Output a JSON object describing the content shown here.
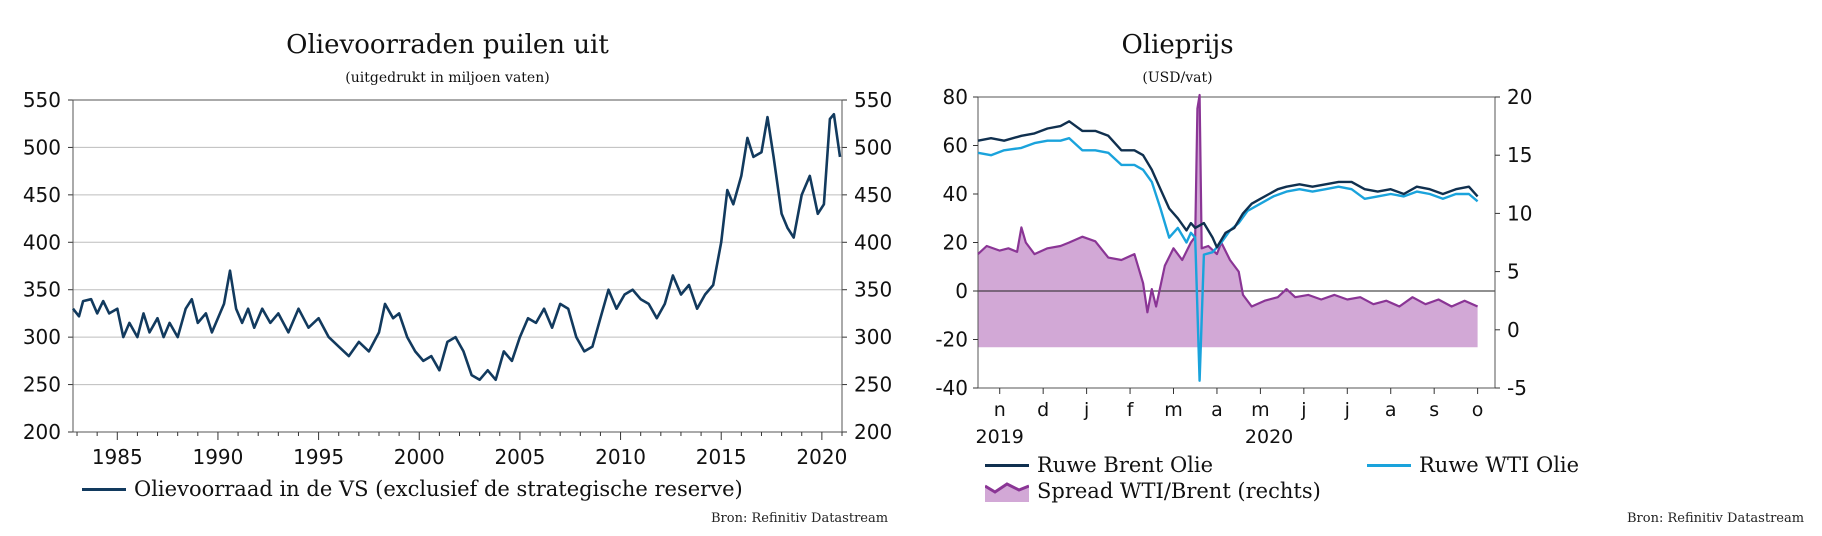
{
  "chart_data": [
    {
      "type": "line",
      "title": "Olievoorraden puilen uit",
      "subtitle": "(uitgedrukt in miljoen vaten)",
      "ylim": [
        200,
        550
      ],
      "yticks": [
        200,
        250,
        300,
        350,
        400,
        450,
        500,
        550
      ],
      "xlim": [
        1982.8,
        2021.0
      ],
      "xticks": [
        1985,
        1990,
        1995,
        2000,
        2005,
        2010,
        2015,
        2020
      ],
      "grid": true,
      "legend_position": "bottom",
      "series": [
        {
          "name": "Olievoorraad in de VS (exclusief de strategische reserve)",
          "color": "#123a5e",
          "points": [
            [
              1982.8,
              330
            ],
            [
              1983.1,
              322
            ],
            [
              1983.3,
              338
            ],
            [
              1983.7,
              340
            ],
            [
              1984.0,
              325
            ],
            [
              1984.3,
              338
            ],
            [
              1984.6,
              325
            ],
            [
              1985.0,
              330
            ],
            [
              1985.3,
              300
            ],
            [
              1985.6,
              315
            ],
            [
              1986.0,
              300
            ],
            [
              1986.3,
              325
            ],
            [
              1986.6,
              305
            ],
            [
              1987.0,
              320
            ],
            [
              1987.3,
              300
            ],
            [
              1987.6,
              315
            ],
            [
              1988.0,
              300
            ],
            [
              1988.4,
              330
            ],
            [
              1988.7,
              340
            ],
            [
              1989.0,
              315
            ],
            [
              1989.4,
              325
            ],
            [
              1989.7,
              305
            ],
            [
              1990.0,
              320
            ],
            [
              1990.3,
              335
            ],
            [
              1990.6,
              370
            ],
            [
              1990.9,
              330
            ],
            [
              1991.2,
              315
            ],
            [
              1991.5,
              330
            ],
            [
              1991.8,
              310
            ],
            [
              1992.2,
              330
            ],
            [
              1992.6,
              315
            ],
            [
              1993.0,
              325
            ],
            [
              1993.5,
              305
            ],
            [
              1994.0,
              330
            ],
            [
              1994.5,
              310
            ],
            [
              1995.0,
              320
            ],
            [
              1995.5,
              300
            ],
            [
              1996.0,
              290
            ],
            [
              1996.5,
              280
            ],
            [
              1997.0,
              295
            ],
            [
              1997.5,
              285
            ],
            [
              1998.0,
              305
            ],
            [
              1998.3,
              335
            ],
            [
              1998.7,
              320
            ],
            [
              1999.0,
              325
            ],
            [
              1999.4,
              300
            ],
            [
              1999.8,
              285
            ],
            [
              2000.2,
              275
            ],
            [
              2000.6,
              280
            ],
            [
              2001.0,
              265
            ],
            [
              2001.4,
              295
            ],
            [
              2001.8,
              300
            ],
            [
              2002.2,
              285
            ],
            [
              2002.6,
              260
            ],
            [
              2003.0,
              255
            ],
            [
              2003.4,
              265
            ],
            [
              2003.8,
              255
            ],
            [
              2004.2,
              285
            ],
            [
              2004.6,
              275
            ],
            [
              2005.0,
              300
            ],
            [
              2005.4,
              320
            ],
            [
              2005.8,
              315
            ],
            [
              2006.2,
              330
            ],
            [
              2006.6,
              310
            ],
            [
              2007.0,
              335
            ],
            [
              2007.4,
              330
            ],
            [
              2007.8,
              300
            ],
            [
              2008.2,
              285
            ],
            [
              2008.6,
              290
            ],
            [
              2009.0,
              320
            ],
            [
              2009.4,
              350
            ],
            [
              2009.8,
              330
            ],
            [
              2010.2,
              345
            ],
            [
              2010.6,
              350
            ],
            [
              2011.0,
              340
            ],
            [
              2011.4,
              335
            ],
            [
              2011.8,
              320
            ],
            [
              2012.2,
              335
            ],
            [
              2012.6,
              365
            ],
            [
              2013.0,
              345
            ],
            [
              2013.4,
              355
            ],
            [
              2013.8,
              330
            ],
            [
              2014.2,
              345
            ],
            [
              2014.6,
              355
            ],
            [
              2015.0,
              400
            ],
            [
              2015.3,
              455
            ],
            [
              2015.6,
              440
            ],
            [
              2016.0,
              470
            ],
            [
              2016.3,
              510
            ],
            [
              2016.6,
              490
            ],
            [
              2017.0,
              495
            ],
            [
              2017.3,
              532
            ],
            [
              2017.6,
              490
            ],
            [
              2018.0,
              430
            ],
            [
              2018.3,
              415
            ],
            [
              2018.6,
              405
            ],
            [
              2019.0,
              450
            ],
            [
              2019.4,
              470
            ],
            [
              2019.8,
              430
            ],
            [
              2020.1,
              440
            ],
            [
              2020.4,
              530
            ],
            [
              2020.6,
              535
            ],
            [
              2020.9,
              490
            ]
          ]
        }
      ]
    },
    {
      "type": "line",
      "title": "Olieprijs",
      "subtitle": "(USD/vat)",
      "ylim": [
        -40,
        80
      ],
      "yticks": [
        -40,
        -20,
        0,
        20,
        40,
        60,
        80
      ],
      "y2lim": [
        -5,
        20
      ],
      "y2ticks": [
        -5,
        0,
        5,
        10,
        15,
        20
      ],
      "month_labels": [
        "n",
        "d",
        "j",
        "f",
        "m",
        "a",
        "m",
        "j",
        "j",
        "a",
        "s",
        "o"
      ],
      "year_labels": [
        "2019",
        "2020"
      ],
      "grid": false,
      "legend_position": "bottom",
      "series": [
        {
          "name": "Ruwe Brent Olie",
          "color": "#10304f",
          "axis": "left",
          "points": [
            [
              0.0,
              62
            ],
            [
              0.3,
              63
            ],
            [
              0.6,
              62
            ],
            [
              1.0,
              64
            ],
            [
              1.3,
              65
            ],
            [
              1.6,
              67
            ],
            [
              1.9,
              68
            ],
            [
              2.1,
              70
            ],
            [
              2.4,
              66
            ],
            [
              2.7,
              66
            ],
            [
              3.0,
              64
            ],
            [
              3.3,
              58
            ],
            [
              3.6,
              58
            ],
            [
              3.8,
              56
            ],
            [
              4.0,
              50
            ],
            [
              4.2,
              42
            ],
            [
              4.4,
              34
            ],
            [
              4.6,
              30
            ],
            [
              4.8,
              25
            ],
            [
              4.9,
              28
            ],
            [
              5.0,
              26
            ],
            [
              5.2,
              28
            ],
            [
              5.4,
              22
            ],
            [
              5.5,
              18
            ],
            [
              5.7,
              24
            ],
            [
              5.9,
              26
            ],
            [
              6.1,
              32
            ],
            [
              6.3,
              36
            ],
            [
              6.5,
              38
            ],
            [
              6.7,
              40
            ],
            [
              6.9,
              42
            ],
            [
              7.1,
              43
            ],
            [
              7.4,
              44
            ],
            [
              7.7,
              43
            ],
            [
              8.0,
              44
            ],
            [
              8.3,
              45
            ],
            [
              8.6,
              45
            ],
            [
              8.9,
              42
            ],
            [
              9.2,
              41
            ],
            [
              9.5,
              42
            ],
            [
              9.8,
              40
            ],
            [
              10.1,
              43
            ],
            [
              10.4,
              42
            ],
            [
              10.7,
              40
            ],
            [
              11.0,
              42
            ],
            [
              11.3,
              43
            ],
            [
              11.5,
              39
            ]
          ]
        },
        {
          "name": "Ruwe WTI Olie",
          "color": "#1aa3dc",
          "axis": "left",
          "points": [
            [
              0.0,
              57
            ],
            [
              0.3,
              56
            ],
            [
              0.6,
              58
            ],
            [
              1.0,
              59
            ],
            [
              1.3,
              61
            ],
            [
              1.6,
              62
            ],
            [
              1.9,
              62
            ],
            [
              2.1,
              63
            ],
            [
              2.4,
              58
            ],
            [
              2.7,
              58
            ],
            [
              3.0,
              57
            ],
            [
              3.3,
              52
            ],
            [
              3.6,
              52
            ],
            [
              3.8,
              50
            ],
            [
              4.0,
              45
            ],
            [
              4.2,
              34
            ],
            [
              4.4,
              22
            ],
            [
              4.6,
              26
            ],
            [
              4.8,
              20
            ],
            [
              4.9,
              24
            ],
            [
              5.0,
              22
            ],
            [
              5.1,
              -37
            ],
            [
              5.2,
              15
            ],
            [
              5.4,
              16
            ],
            [
              5.6,
              20
            ],
            [
              5.8,
              25
            ],
            [
              6.0,
              28
            ],
            [
              6.2,
              33
            ],
            [
              6.5,
              36
            ],
            [
              6.8,
              39
            ],
            [
              7.1,
              41
            ],
            [
              7.4,
              42
            ],
            [
              7.7,
              41
            ],
            [
              8.0,
              42
            ],
            [
              8.3,
              43
            ],
            [
              8.6,
              42
            ],
            [
              8.9,
              38
            ],
            [
              9.2,
              39
            ],
            [
              9.5,
              40
            ],
            [
              9.8,
              39
            ],
            [
              10.1,
              41
            ],
            [
              10.4,
              40
            ],
            [
              10.7,
              38
            ],
            [
              11.0,
              40
            ],
            [
              11.3,
              40
            ],
            [
              11.5,
              37
            ]
          ]
        },
        {
          "name": "Spread WTI/Brent (rechts)",
          "color": "#8a3595",
          "fill": "#d2a8d6",
          "axis": "right",
          "points": [
            [
              0.0,
              6.5
            ],
            [
              0.2,
              7.2
            ],
            [
              0.5,
              6.8
            ],
            [
              0.7,
              7.0
            ],
            [
              0.9,
              6.7
            ],
            [
              1.0,
              8.8
            ],
            [
              1.1,
              7.5
            ],
            [
              1.3,
              6.5
            ],
            [
              1.6,
              7.0
            ],
            [
              1.9,
              7.2
            ],
            [
              2.1,
              7.5
            ],
            [
              2.4,
              8.0
            ],
            [
              2.7,
              7.6
            ],
            [
              3.0,
              6.2
            ],
            [
              3.3,
              6.0
            ],
            [
              3.6,
              6.5
            ],
            [
              3.8,
              4.0
            ],
            [
              3.9,
              1.5
            ],
            [
              4.0,
              3.5
            ],
            [
              4.1,
              2.0
            ],
            [
              4.3,
              5.5
            ],
            [
              4.5,
              7.0
            ],
            [
              4.7,
              6.0
            ],
            [
              4.9,
              7.5
            ],
            [
              5.0,
              8.0
            ],
            [
              5.05,
              19.0
            ],
            [
              5.1,
              20.5
            ],
            [
              5.15,
              7.0
            ],
            [
              5.3,
              7.2
            ],
            [
              5.5,
              6.5
            ],
            [
              5.6,
              7.5
            ],
            [
              5.8,
              6.0
            ],
            [
              6.0,
              5.0
            ],
            [
              6.1,
              3.0
            ],
            [
              6.3,
              2.0
            ],
            [
              6.6,
              2.5
            ],
            [
              6.9,
              2.8
            ],
            [
              7.1,
              3.5
            ],
            [
              7.3,
              2.8
            ],
            [
              7.6,
              3.0
            ],
            [
              7.9,
              2.6
            ],
            [
              8.2,
              3.0
            ],
            [
              8.5,
              2.6
            ],
            [
              8.8,
              2.8
            ],
            [
              9.1,
              2.2
            ],
            [
              9.4,
              2.5
            ],
            [
              9.7,
              2.0
            ],
            [
              10.0,
              2.8
            ],
            [
              10.3,
              2.2
            ],
            [
              10.6,
              2.6
            ],
            [
              10.9,
              2.0
            ],
            [
              11.2,
              2.5
            ],
            [
              11.5,
              2.0
            ]
          ]
        }
      ]
    }
  ],
  "legend_left": {
    "label": "Olievoorraad in de VS (exclusief de strategische reserve)",
    "color": "#123a5e"
  },
  "legend_right": {
    "brent_label": "Ruwe Brent Olie",
    "wti_label": "Ruwe WTI Olie",
    "spread_label": "Spread WTI/Brent (rechts)"
  },
  "source_left": "Bron: Refinitiv Datastream",
  "source_right": "Bron: Refinitiv Datastream"
}
